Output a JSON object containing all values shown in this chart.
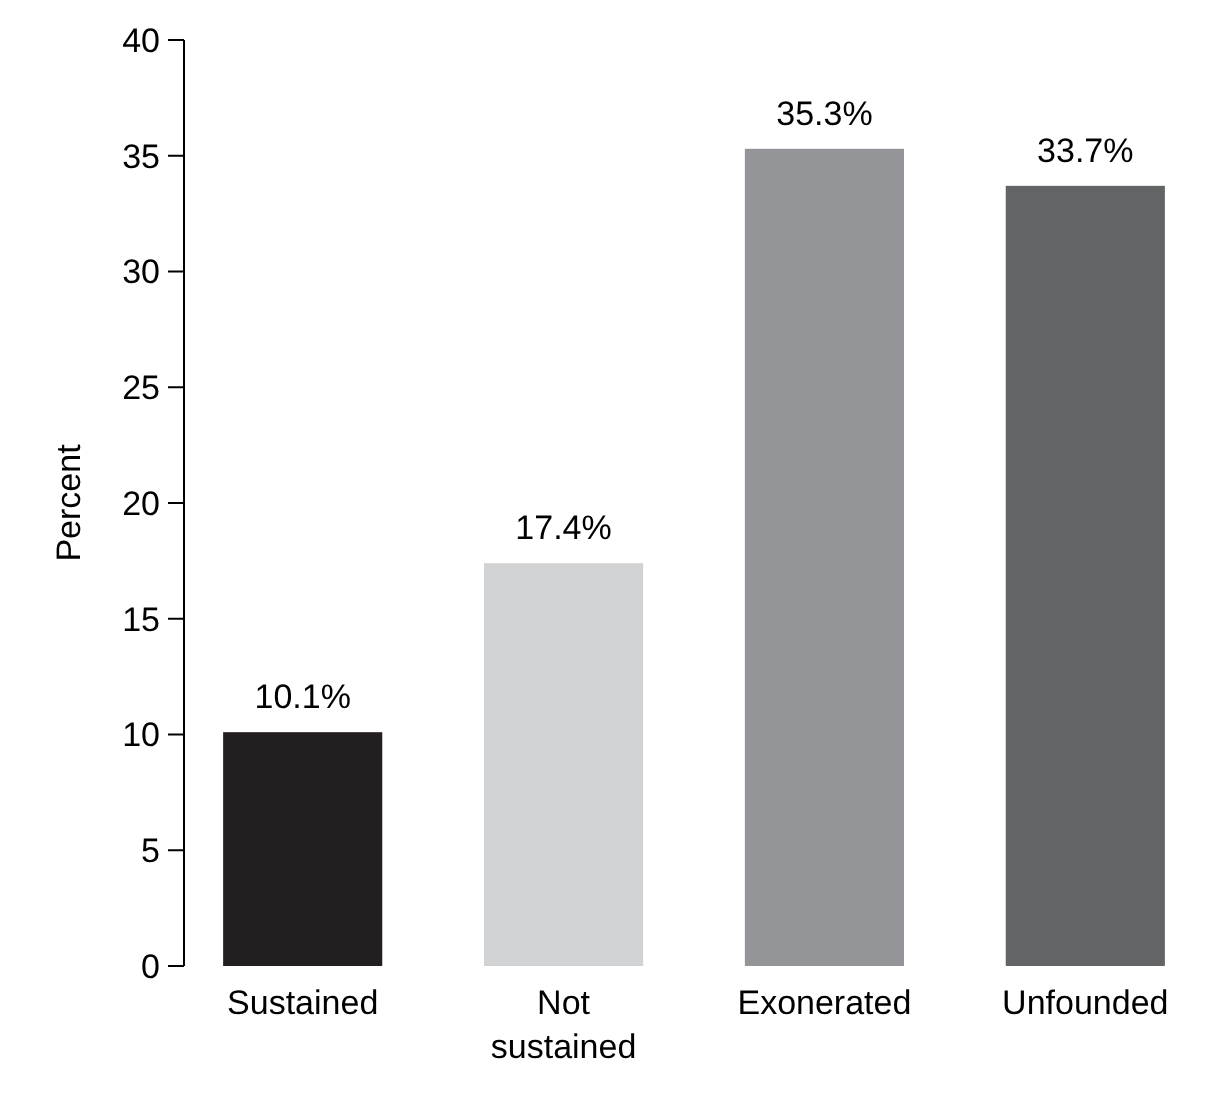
{
  "chart_data": {
    "type": "bar",
    "ylabel": "Percent",
    "categories": [
      "Sustained",
      "Not sustained",
      "Exonerated",
      "Unfounded"
    ],
    "values": [
      10.1,
      17.4,
      35.3,
      33.7
    ],
    "colors": [
      "#231f20",
      "#d1d2d4",
      "#939598",
      "#636466"
    ],
    "value_labels": [
      "10.1%",
      "17.4%",
      "35.3%",
      "33.7%"
    ],
    "ylim": [
      0,
      40
    ],
    "yticks": [
      0,
      5,
      10,
      15,
      20,
      25,
      30,
      35,
      40
    ]
  }
}
